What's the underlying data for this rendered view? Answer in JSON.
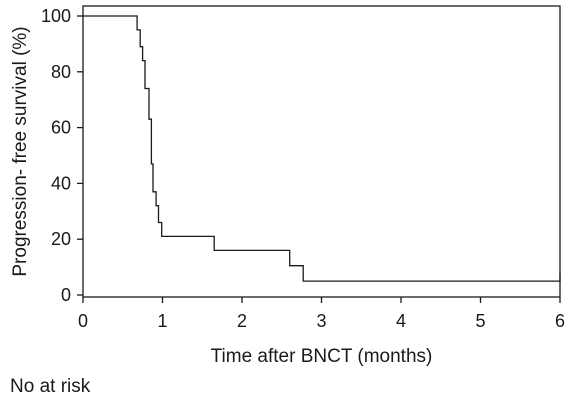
{
  "chart_data": {
    "type": "line",
    "subtype": "kaplan-meier-step",
    "title": "",
    "xlabel": "Time after BNCT (months)",
    "ylabel": "Progression- free survival (%)",
    "xlim": [
      0,
      6
    ],
    "ylim": [
      0,
      100
    ],
    "x_ticks": [
      "0",
      "1",
      "2",
      "3",
      "4",
      "5",
      "6"
    ],
    "y_ticks": [
      "0",
      "20",
      "40",
      "60",
      "80",
      "100"
    ],
    "grid": false,
    "legend": "none",
    "series": [
      {
        "x": [
          0,
          0.68,
          0.72,
          0.75,
          0.78,
          0.83,
          0.86,
          0.88,
          0.92,
          0.95,
          0.99,
          1.04,
          1.65,
          2.6,
          2.77,
          6.0
        ],
        "y": [
          100,
          95,
          89,
          84,
          74,
          63,
          47,
          37,
          32,
          26,
          21,
          21,
          16,
          10.5,
          5,
          5
        ]
      }
    ],
    "footer_label": "No at risk",
    "line_color": "#1a1a1a"
  }
}
